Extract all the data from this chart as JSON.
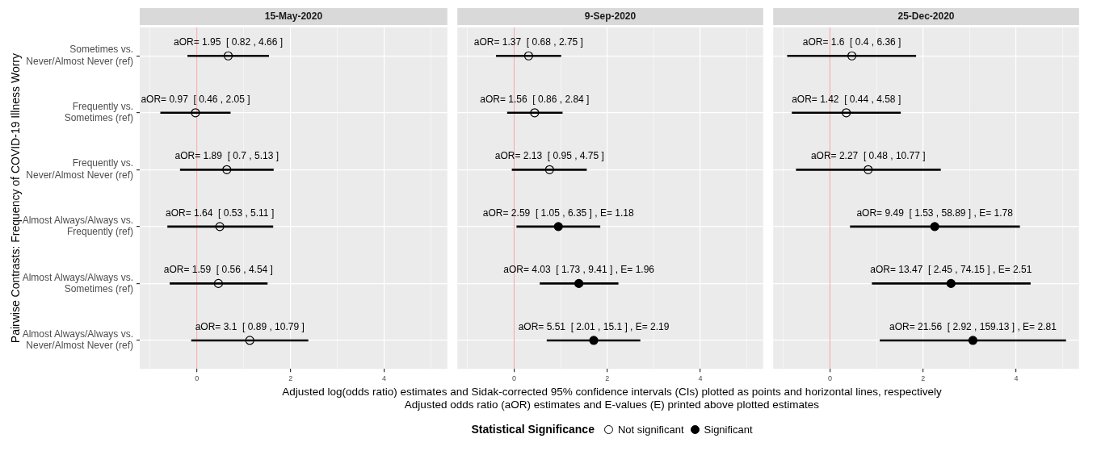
{
  "chart_data": [
    {
      "type": "scatter",
      "orientation": "horizontal",
      "title": "15-May-2020",
      "ylabel": "Pairwise Contrasts: Frequency of COVID-19 Illness Worry",
      "categories": [
        "Sometimes vs.\nNever/Almost Never (ref)",
        "Frequently vs.\nSometimes (ref)",
        "Frequently vs.\nNever/Almost Never (ref)",
        "Almost Always/Always vs.\nFrequently (ref)",
        "Almost Always/Always vs.\nSometimes (ref)",
        "Almost Always/Always vs.\nNever/Almost Never (ref)"
      ],
      "series": [
        {
          "color": "#000000",
          "values": [
            0.67,
            -0.03,
            0.64,
            0.49,
            0.46,
            1.13
          ],
          "errors": [
            [
              -0.2,
              1.54
            ],
            [
              -0.78,
              0.72
            ],
            [
              -0.36,
              1.64
            ],
            [
              -0.63,
              1.63
            ],
            [
              -0.58,
              1.51
            ],
            [
              -0.12,
              2.38
            ]
          ],
          "value_labels": [
            "aOR= 1.95  [ 0.82 , 4.66 ]",
            "aOR= 0.97  [ 0.46 , 2.05 ]",
            "aOR= 1.89  [ 0.7 , 5.13 ]",
            "aOR= 1.64  [ 0.53 , 5.11 ]",
            "aOR= 1.59  [ 0.56 , 4.54 ]",
            "aOR= 3.1  [ 0.89 , 10.79 ]"
          ]
        }
      ],
      "xlim": [
        -1.22,
        5.35
      ],
      "xticks": [
        {
          "value": -1,
          "label": null
        },
        0,
        {
          "value": 1,
          "label": null
        },
        2,
        {
          "value": 3,
          "label": null
        },
        4,
        {
          "value": 5,
          "label": null
        }
      ],
      "ref_lines": [
        {
          "axis": "x",
          "value": 0,
          "label": null,
          "color": "#f4a3a3"
        }
      ],
      "grid": true,
      "marker": "circle"
    },
    {
      "type": "scatter",
      "orientation": "horizontal",
      "title": "9-Sep-2020",
      "tick_labels": "x",
      "categories": [
        null,
        null,
        null,
        null,
        null,
        null
      ],
      "xlabel": "Adjusted log(odds ratio) estimates and Sidak-corrected 95% confidence intervals (CIs) plotted as points and horizontal lines, respectively\nAdjusted odds ratio (aOR) estimates and E-values (E) printed above plotted estimates",
      "legend": "bottom",
      "legend_title": "Statistical Significance",
      "series": [
        {
          "name": "Not significant",
          "color": "#000000",
          "values": [
            0.31,
            0.44,
            0.76,
            null,
            null,
            null
          ],
          "errors": [
            [
              -0.39,
              1.01
            ],
            [
              -0.15,
              1.04
            ],
            [
              -0.05,
              1.56
            ],
            null,
            null,
            null
          ],
          "value_labels": [
            "aOR= 1.37  [ 0.68 , 2.75 ]",
            "aOR= 1.56  [ 0.86 , 2.84 ]",
            "aOR= 2.13  [ 0.95 , 4.75 ]",
            null,
            null,
            null
          ]
        },
        {
          "name": "Significant",
          "color": "#000000",
          "values": [
            null,
            null,
            null,
            0.95,
            1.39,
            1.71
          ],
          "errors": [
            null,
            null,
            null,
            [
              0.05,
              1.85
            ],
            [
              0.55,
              2.24
            ],
            [
              0.7,
              2.71
            ]
          ],
          "value_labels": [
            null,
            null,
            null,
            "aOR= 2.59  [ 1.05 , 6.35 ] , E= 1.18",
            "aOR= 4.03  [ 1.73 , 9.41 ] , E= 1.96",
            "aOR= 5.51  [ 2.01 , 15.1 ] , E= 2.19"
          ]
        }
      ],
      "xlim": [
        -1.22,
        5.35
      ],
      "xticks": [
        {
          "value": -1,
          "label": null
        },
        0,
        {
          "value": 1,
          "label": null
        },
        2,
        {
          "value": 3,
          "label": null
        },
        4,
        {
          "value": 5,
          "label": null
        }
      ],
      "ref_lines": [
        {
          "axis": "x",
          "value": 0,
          "label": null,
          "color": "#f4a3a3"
        }
      ],
      "grid": true,
      "marker": "circle"
    },
    {
      "type": "scatter",
      "orientation": "horizontal",
      "title": "25-Dec-2020",
      "tick_labels": "x",
      "categories": [
        null,
        null,
        null,
        null,
        null,
        null
      ],
      "series": [
        {
          "color": "#000000",
          "values": [
            0.47,
            0.35,
            0.82,
            null,
            null,
            null
          ],
          "errors": [
            [
              -0.92,
              1.85
            ],
            [
              -0.82,
              1.52
            ],
            [
              -0.73,
              2.38
            ],
            null,
            null,
            null
          ],
          "value_labels": [
            "aOR= 1.6  [ 0.4 , 6.36 ]",
            "aOR= 1.42  [ 0.44 , 4.58 ]",
            "aOR= 2.27  [ 0.48 , 10.77 ]",
            null,
            null,
            null
          ]
        },
        {
          "color": "#000000",
          "values": [
            null,
            null,
            null,
            2.25,
            2.6,
            3.07
          ],
          "errors": [
            null,
            null,
            null,
            [
              0.43,
              4.08
            ],
            [
              0.9,
              4.31
            ],
            [
              1.07,
              5.07
            ]
          ],
          "value_labels": [
            null,
            null,
            null,
            "aOR= 9.49  [ 1.53 , 58.89 ] , E= 1.78",
            "aOR= 13.47  [ 2.45 , 74.15 ] , E= 2.51",
            "aOR= 21.56  [ 2.92 , 159.13 ] , E= 2.81"
          ]
        }
      ],
      "xlim": [
        -1.22,
        5.35
      ],
      "xticks": [
        {
          "value": -1,
          "label": null
        },
        0,
        {
          "value": 1,
          "label": null
        },
        2,
        {
          "value": 3,
          "label": null
        },
        4,
        {
          "value": 5,
          "label": null
        }
      ],
      "ref_lines": [
        {
          "axis": "x",
          "value": 0,
          "label": null,
          "color": "#f4a3a3"
        }
      ],
      "grid": true,
      "marker": "circle"
    }
  ]
}
